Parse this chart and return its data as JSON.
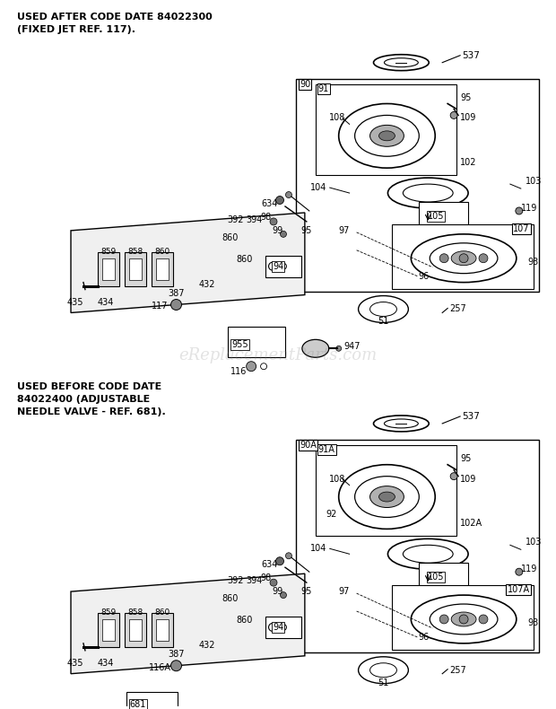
{
  "bg_color": "#ffffff",
  "top_label1": "USED AFTER CODE DATE 84022300",
  "top_label2": "(FIXED JET REF. 117).",
  "bot_label1": "USED BEFORE CODE DATE",
  "bot_label2": "84022400 (ADJUSTABLE",
  "bot_label3": "NEEDLE VALVE - REF. 681).",
  "watermark": "eReplacementParts.com"
}
